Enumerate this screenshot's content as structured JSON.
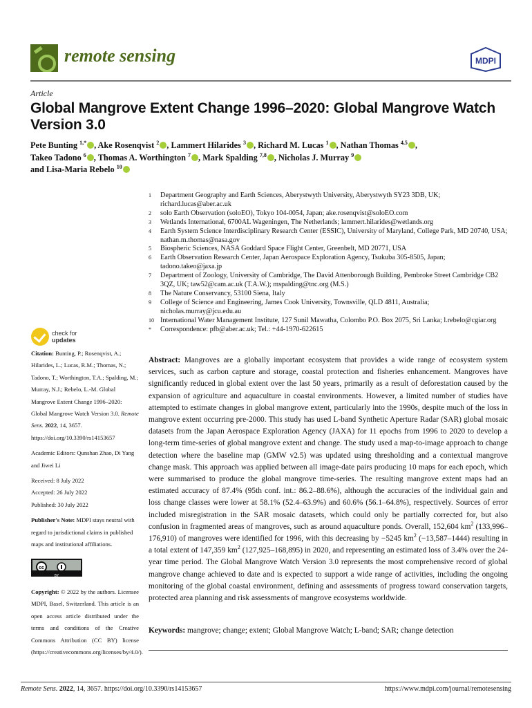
{
  "header": {
    "journal": "remote sensing",
    "publisher_logo": "MDPI",
    "brand_color": "#4e6b1c"
  },
  "article_type": "Article",
  "title": "Global Mangrove Extent Change 1996–2020: Global Mangrove Watch Version 3.0",
  "authors": [
    {
      "name": "Pete Bunting",
      "sup": "1,*",
      "sep": ", "
    },
    {
      "name": "Ake Rosenqvist",
      "sup": "2",
      "sep": ", "
    },
    {
      "name": "Lammert Hilarides",
      "sup": "3",
      "sep": ", "
    },
    {
      "name": "Richard M. Lucas",
      "sup": "1",
      "sep": ", "
    },
    {
      "name": "Nathan Thomas",
      "sup": "4,5",
      "sep": ", "
    },
    {
      "name": "Takeo Tadono",
      "sup": "6",
      "sep": ", "
    },
    {
      "name": "Thomas A. Worthington",
      "sup": "7",
      "sep": ", "
    },
    {
      "name": "Mark Spalding",
      "sup": "7,8",
      "sep": ", "
    },
    {
      "name": "Nicholas J. Murray",
      "sup": "9",
      "sep": ""
    },
    {
      "name": "and Lisa-Maria Rebelo",
      "sup": "10",
      "sep": ""
    }
  ],
  "affiliations": [
    {
      "n": "1",
      "text": "Department Geography and Earth Sciences, Aberystwyth University, Aberystwyth SY23 3DB, UK; richard.lucas@aber.ac.uk"
    },
    {
      "n": "2",
      "text": "solo Earth Observation (soloEO), Tokyo 104-0054, Japan; ake.rosenqvist@soloEO.com"
    },
    {
      "n": "3",
      "text": "Wetlands International, 6700AL Wageningen, The Netherlands; lammert.hilarides@wetlands.org"
    },
    {
      "n": "4",
      "text": "Earth System Science Interdisciplinary Research Center (ESSIC), University of Maryland, College Park, MD 20740, USA; nathan.m.thomas@nasa.gov"
    },
    {
      "n": "5",
      "text": "Biospheric Sciences, NASA Goddard Space Flight Center, Greenbelt, MD 20771, USA"
    },
    {
      "n": "6",
      "text": "Earth Observation Research Center, Japan Aerospace Exploration Agency, Tsukuba 305-8505, Japan; tadono.takeo@jaxa.jp"
    },
    {
      "n": "7",
      "text": "Department of Zoology, University of Cambridge, The David Attenborough Building, Pembroke Street Cambridge CB2 3QZ, UK; taw52@cam.ac.uk (T.A.W.); mspalding@tnc.org (M.S.)"
    },
    {
      "n": "8",
      "text": "The Nature Conservancy, 53100 Siena, Italy"
    },
    {
      "n": "9",
      "text": "College of Science and Engineering, James Cook University, Townsville, QLD 4811, Australia; nicholas.murray@jcu.edu.au"
    },
    {
      "n": "10",
      "text": "International Water Management Institute, 127 Sunil Mawatha, Colombo P.O. Box 2075, Sri Lanka; l.rebelo@cgiar.org"
    },
    {
      "n": "*",
      "text": "Correspondence: pfb@aber.ac.uk; Tel.: +44-1970-622615"
    }
  ],
  "check_updates": {
    "line1": "check for",
    "line2": "updates"
  },
  "citation": {
    "label": "Citation:",
    "text": "Bunting, P.; Rosenqvist, A.; Hilarides, L.; Lucas, R.M.; Thomas, N.; Tadono, T.; Worthington, T.A.; Spalding, M.; Murray, N.J.; Rebelo, L.-M. Global Mangrove Extent Change 1996–2020: Global Mangrove Watch Version 3.0.",
    "journal": "Remote Sens.",
    "year": "2022",
    "rest": ", 14, 3657. https://doi.org/10.3390/rs14153657"
  },
  "editors": "Academic Editors: Qunshan Zhao, Di Yang and Jiwei Li",
  "dates": {
    "received": "Received: 8 July 2022",
    "accepted": "Accepted: 26 July 2022",
    "published": "Published: 30 July 2022"
  },
  "publisher_note": {
    "label": "Publisher's Note:",
    "text": "MDPI stays neutral with regard to jurisdictional claims in published maps and institutional affiliations."
  },
  "license_badge": "BY",
  "copyright": {
    "label": "Copyright:",
    "text": "© 2022 by the authors. Licensee MDPI, Basel, Switzerland. This article is an open access article distributed under the terms and conditions of the Creative Commons Attribution (CC BY) license (https://creativecommons.org/licenses/by/4.0/)."
  },
  "abstract": {
    "label": "Abstract:",
    "p1": "Mangroves are a globally important ecosystem that provides a wide range of ecosystem system services, such as carbon capture and storage, coastal protection and fisheries enhancement. Mangroves have significantly reduced in global extent over the last 50 years, primarily as a result of deforestation caused by the expansion of agriculture and aquaculture in coastal environments. However, a limited number of studies have attempted to estimate changes in global mangrove extent, particularly into the 1990s, despite much of the loss in mangrove extent occurring pre-2000. This study has used L-band Synthetic Aperture Radar (SAR) global mosaic datasets from the Japan Aerospace Exploration Agency (JAXA) for 11 epochs from 1996 to 2020 to develop a long-term time-series of global mangrove extent and change. The study used a map-to-image approach to change detection where the baseline map (GMW v2.5) was updated using thresholding and a contextual mangrove change mask. This approach was applied between all image-date pairs producing 10 maps for each epoch, which were summarised to produce the global mangrove time-series. The resulting mangrove extent maps had an estimated accuracy of 87.4% (95th conf. int.: 86.2–88.6%), although the accuracies of the individual gain and loss change classes were lower at 58.1% (52.4–63.9%) and 60.6% (56.1–64.8%), respectively. Sources of error included misregistration in the SAR mosaic datasets, which could only be partially corrected for, but also confusion in fragmented areas of mangroves, such as around aquaculture ponds. Overall, 152,604 km",
    "sup": "2",
    "p2": " (133,996–176,910) of mangroves were identified for 1996, with this decreasing by −5245 km",
    "p3": " (−13,587–1444) resulting in a total extent of 147,359 km",
    "p4": " (127,925–168,895) in 2020, and representing an estimated loss of 3.4% over the 24-year time period. The Global Mangrove Watch Version 3.0 represents the most comprehensive record of global mangrove change achieved to date and is expected to support a wide range of activities, including the ongoing monitoring of the global coastal environment, defining and assessments of progress toward conservation targets, protected area planning and risk assessments of mangrove ecosystems worldwide."
  },
  "keywords": {
    "label": "Keywords:",
    "text": "mangrove; change; extent; Global Mangrove Watch; L-band; SAR; change detection"
  },
  "footer": {
    "journal": "Remote Sens.",
    "year": "2022",
    "rest": ", 14, 3657. https://doi.org/10.3390/rs14153657",
    "url": "https://www.mdpi.com/journal/remotesensing"
  }
}
